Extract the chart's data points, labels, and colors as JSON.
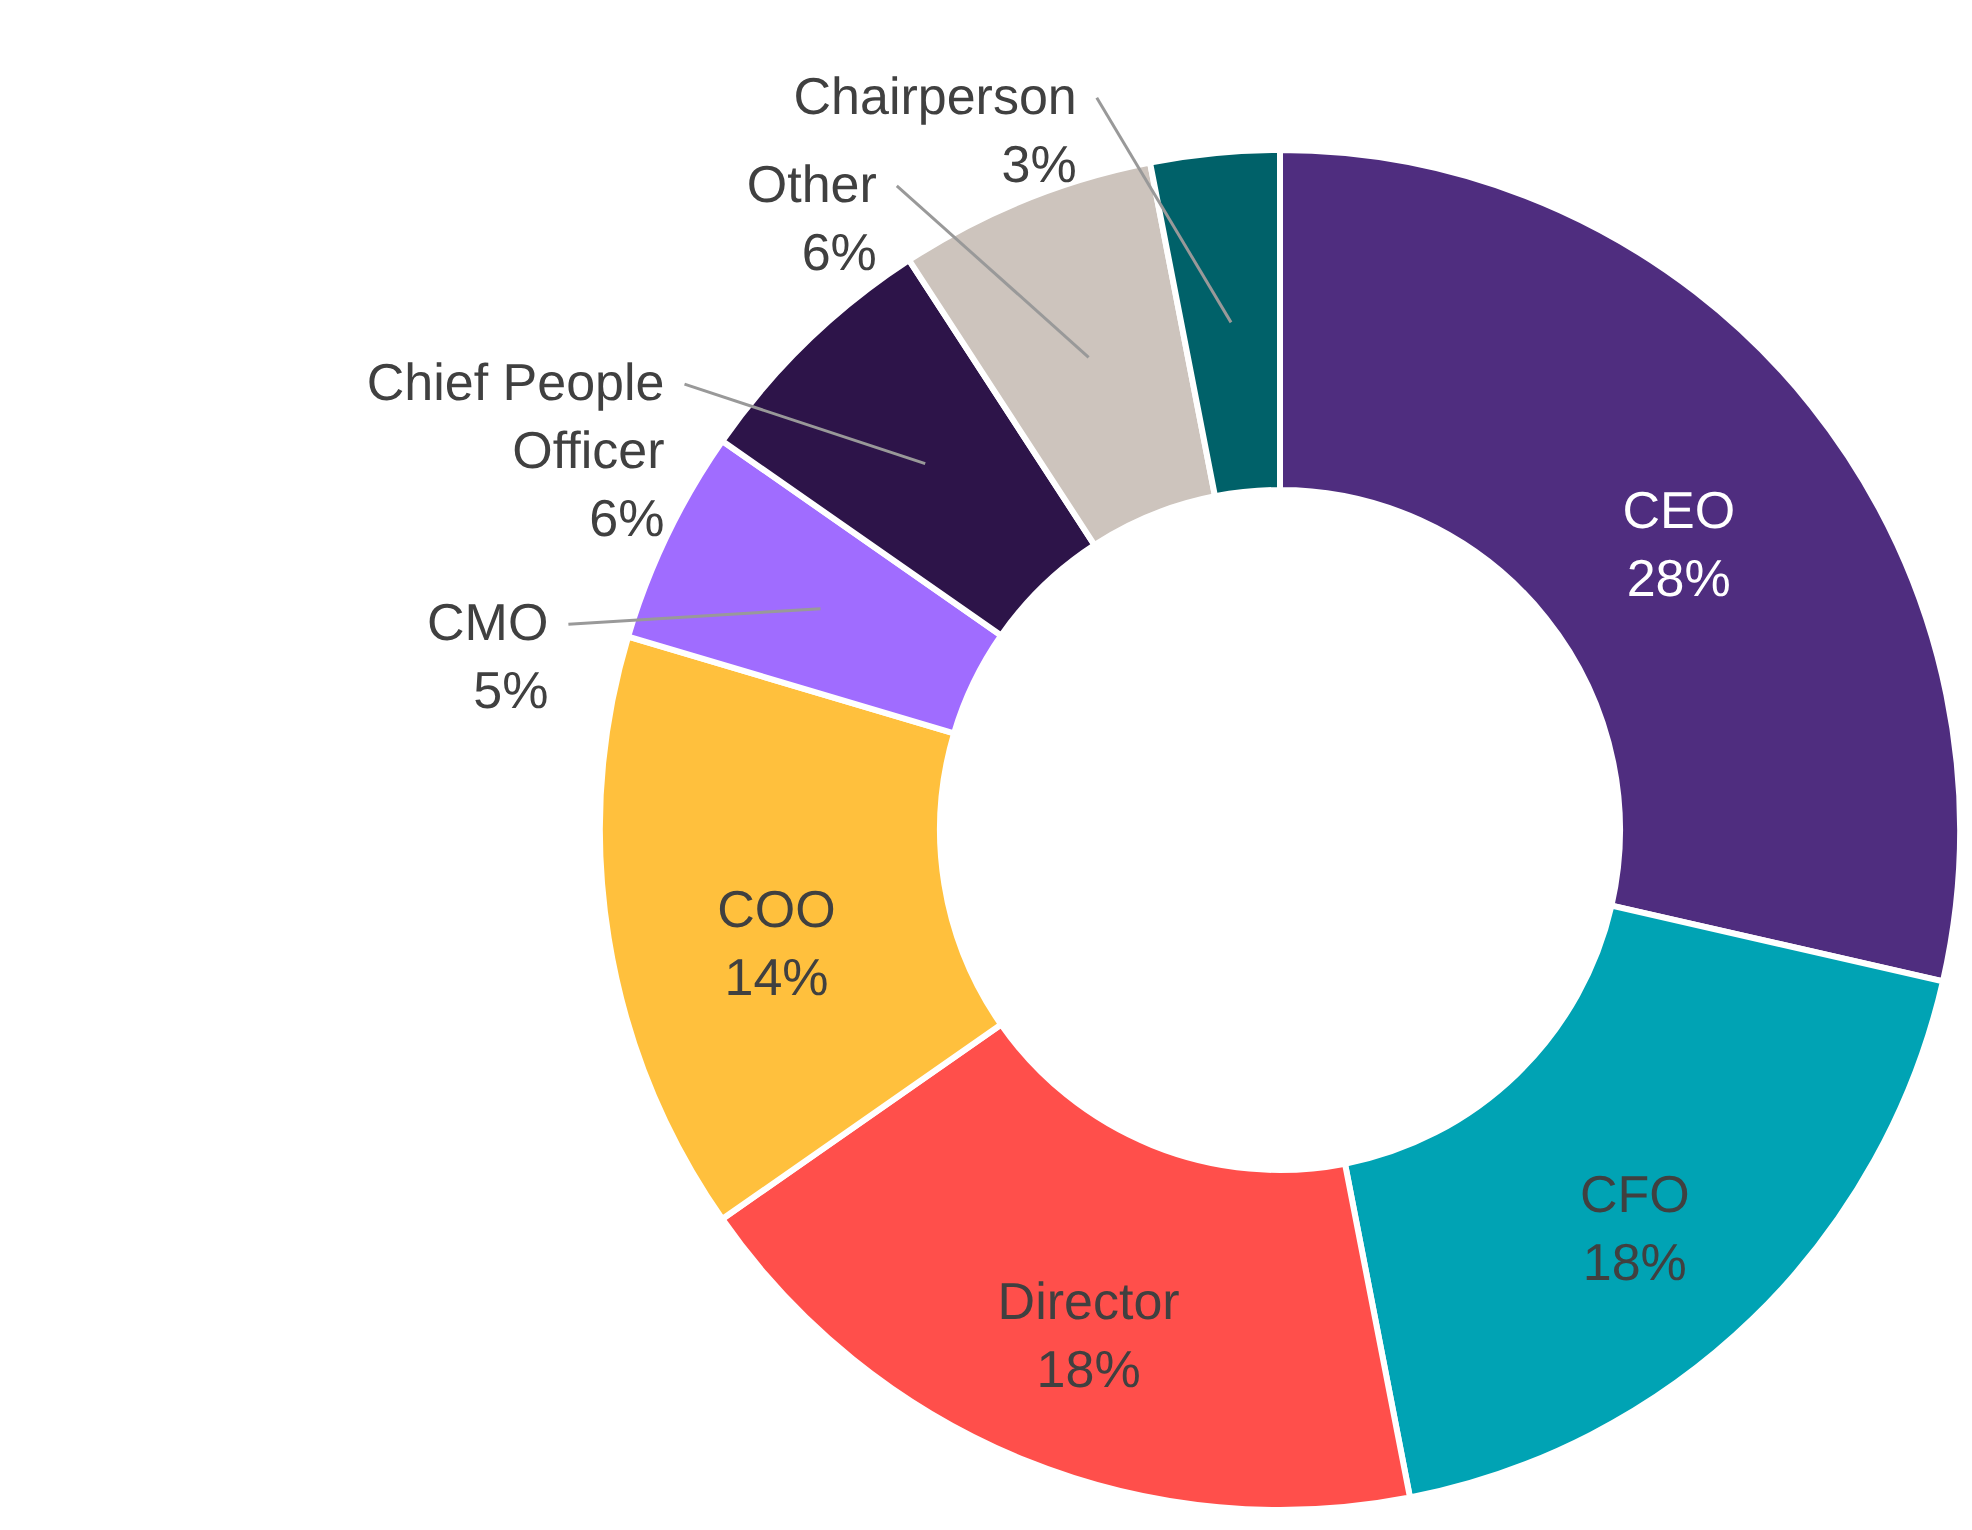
{
  "chart_data": {
    "type": "donut",
    "categories": [
      "CEO",
      "CFO",
      "Director",
      "COO",
      "CMO",
      "Chief People Officer",
      "Other",
      "Chairperson"
    ],
    "values": [
      28,
      18,
      18,
      14,
      5,
      6,
      6,
      3
    ],
    "colors": [
      "#4f2d7f",
      "#00a3b4",
      "#ff4f4b",
      "#ffc03d",
      "#a06cff",
      "#2d1449",
      "#cdc4bd",
      "#006169"
    ],
    "value_labels": [
      "28%",
      "18%",
      "18%",
      "14%",
      "5%",
      "6%",
      "6%",
      "3%"
    ]
  }
}
